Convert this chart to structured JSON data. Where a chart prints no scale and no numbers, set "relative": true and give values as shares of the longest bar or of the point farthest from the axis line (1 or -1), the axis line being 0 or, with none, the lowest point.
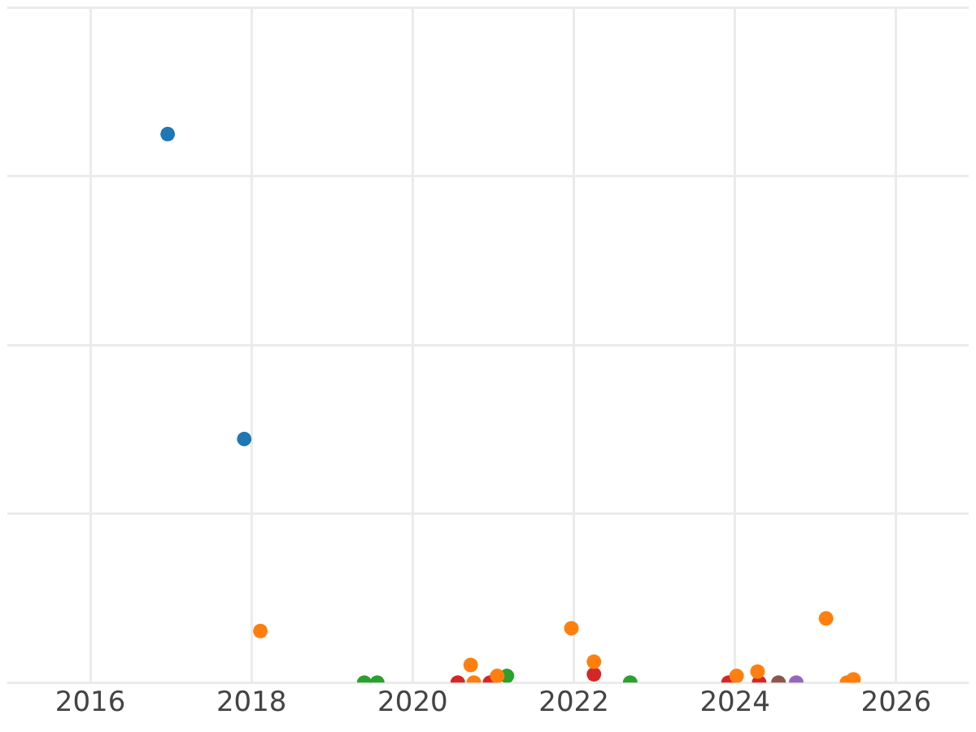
{
  "chart_data": {
    "type": "scatter",
    "relative": true,
    "xlim": [
      2014.97,
      2026.9
    ],
    "xticks": [
      2016,
      2018,
      2020,
      2022,
      2024,
      2026
    ],
    "tick_labels": "x",
    "grid": true,
    "marker": "circle",
    "series": [
      {
        "color": "#1f77b4",
        "x": [
          2016.96,
          2017.91
        ],
        "values": [
          1,
          0.444
        ]
      },
      {
        "color": "#ff7f0e",
        "x": [
          2018.11,
          2020.72,
          2020.76,
          2021.05,
          2021.97,
          2022.25,
          2024.02,
          2024.22,
          2024.28,
          2025.13,
          2025.39,
          2025.47
        ],
        "values": [
          0.094,
          0.032,
          0,
          0.012,
          0.099,
          0.038,
          0.012,
          null,
          0.02,
          0.117,
          0,
          0.006
        ]
      },
      {
        "color": "#2ca02c",
        "x": [
          2019.4,
          2019.56,
          2021.17,
          2022.7
        ],
        "values": [
          0,
          0,
          0.012,
          0
        ]
      },
      {
        "color": "#d62728",
        "x": [
          2020.56,
          2020.96,
          2022.25,
          2023.92,
          2024.3
        ],
        "values": [
          0,
          0,
          0.015,
          0,
          0
        ]
      },
      {
        "color": "#8c564b",
        "x": [
          2024.54
        ],
        "values": [
          0
        ]
      },
      {
        "color": "#9467bd",
        "x": [
          2024.76
        ],
        "values": [
          0
        ]
      }
    ]
  }
}
